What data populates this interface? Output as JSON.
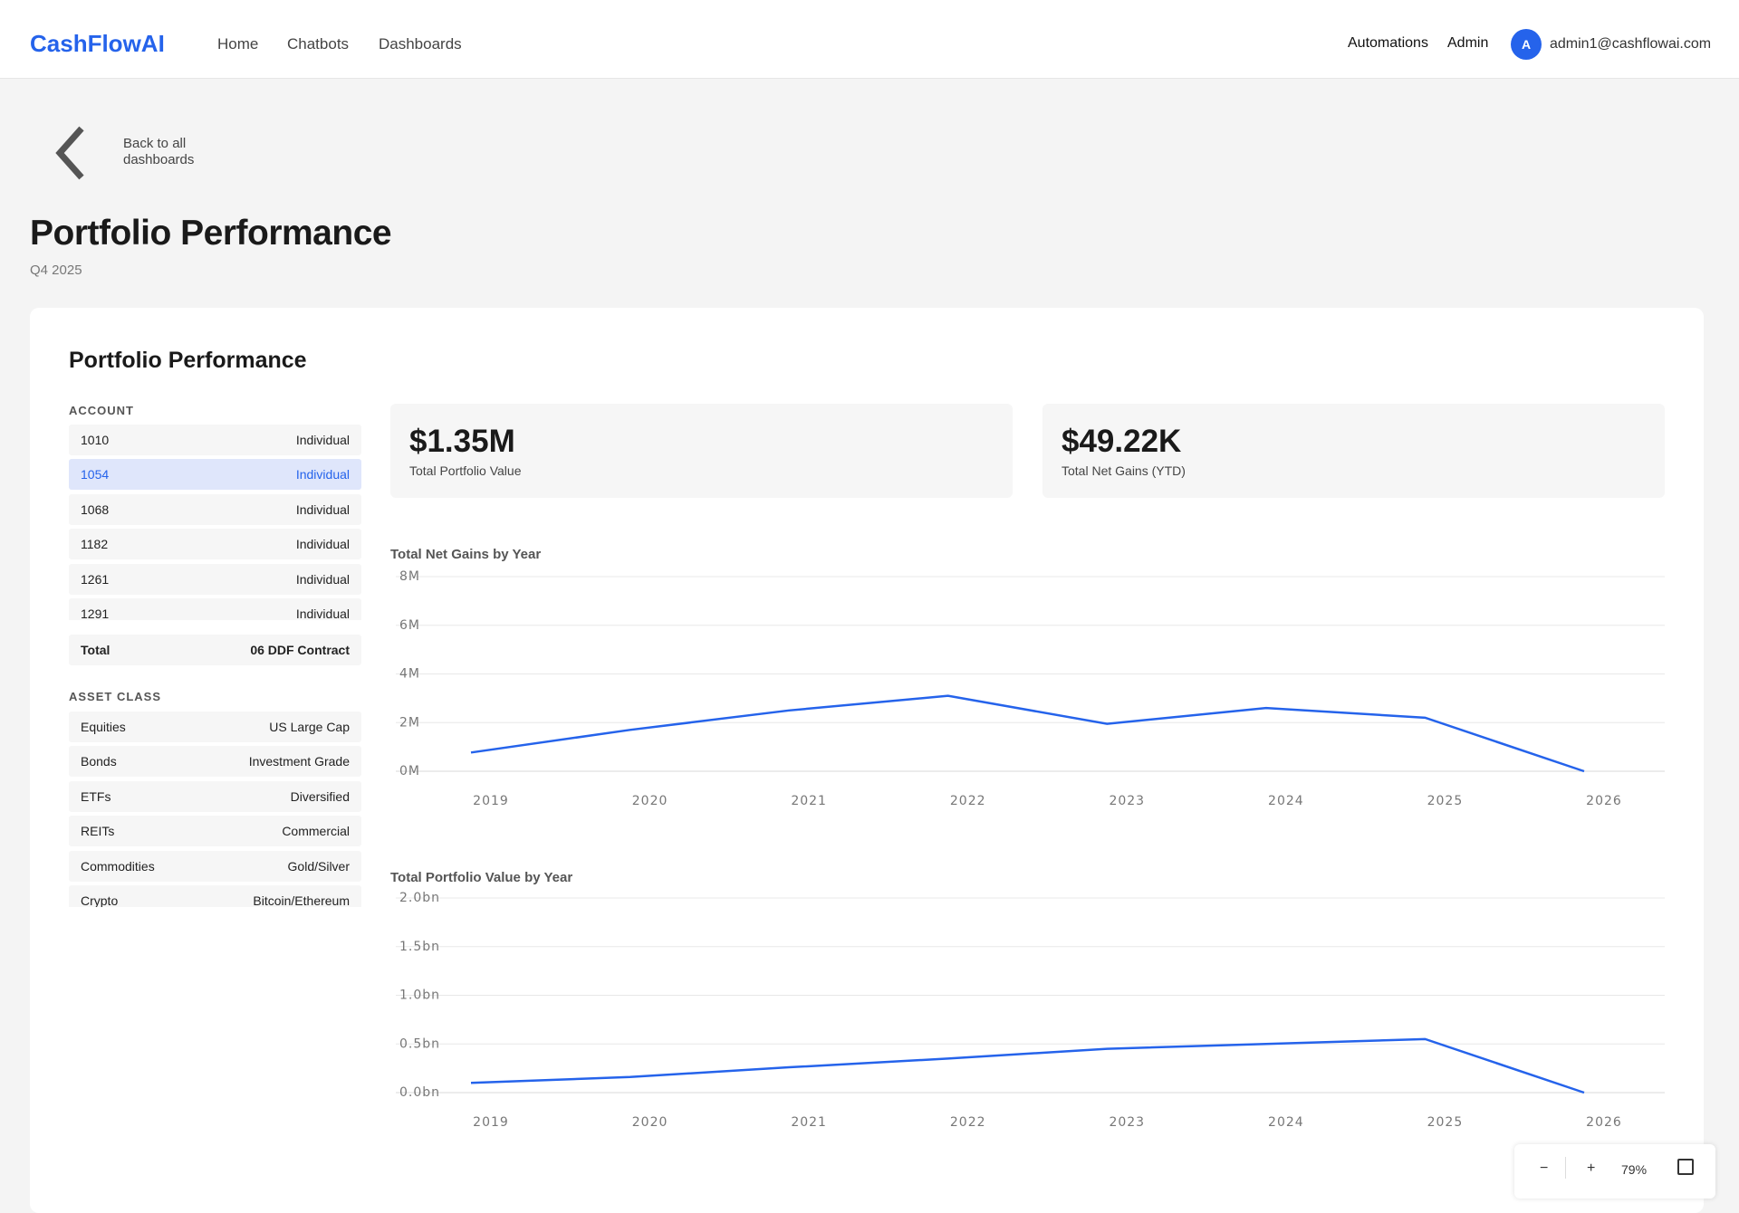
{
  "header": {
    "logo": "CashFlowAI",
    "nav": [
      "Home",
      "Chatbots",
      "Dashboards"
    ],
    "right_nav": [
      "Automations",
      "Admin"
    ],
    "avatar": "A",
    "email": "admin1@cashflowai.com"
  },
  "back_link": "Back to all dashboards",
  "page": {
    "title": "Portfolio Performance",
    "subtitle": "Q4 2025"
  },
  "card": {
    "title": "Portfolio Performance",
    "account": {
      "label": "ACCOUNT",
      "selected": 1,
      "rows": [
        [
          "1010",
          "Individual"
        ],
        [
          "1054",
          "Individual"
        ],
        [
          "1068",
          "Individual"
        ],
        [
          "1182",
          "Individual"
        ],
        [
          "1261",
          "Individual"
        ],
        [
          "1291",
          "Individual"
        ]
      ],
      "total": [
        "Total",
        "06 DDF Contract"
      ]
    },
    "asset_class": {
      "label": "ASSET CLASS",
      "rows": [
        [
          "Equities",
          "US Large Cap"
        ],
        [
          "Bonds",
          "Investment Grade"
        ],
        [
          "ETFs",
          "Diversified"
        ],
        [
          "REITs",
          "Commercial"
        ],
        [
          "Commodities",
          "Gold/Silver"
        ],
        [
          "Crypto",
          "Bitcoin/Ethereum"
        ]
      ]
    },
    "kpis": [
      {
        "value": "$1.35M",
        "label": "Total Portfolio Value"
      },
      {
        "value": "$49.22K",
        "label": "Total Net Gains (YTD)"
      }
    ]
  },
  "chart_data": [
    {
      "type": "line",
      "title": "Total Net Gains by Year",
      "color": "#2563eb",
      "grid": true,
      "categories": [
        "2019",
        "2020",
        "2021",
        "2022",
        "2023",
        "2024",
        "2025",
        "2026"
      ],
      "values": [
        0.77,
        1.7,
        2.5,
        3.1,
        1.95,
        2.6,
        2.2,
        0
      ],
      "ylim": [
        0,
        8
      ],
      "yticks": [
        {
          "value": 0,
          "label": "0M"
        },
        {
          "value": 2,
          "label": "2M"
        },
        {
          "value": 4,
          "label": "4M"
        },
        {
          "value": 6,
          "label": "6M"
        },
        {
          "value": 8,
          "label": "8M"
        }
      ]
    },
    {
      "type": "line",
      "title": "Total Portfolio Value by Year",
      "color": "#2563eb",
      "grid": true,
      "categories": [
        "2019",
        "2020",
        "2021",
        "2022",
        "2023",
        "2024",
        "2025",
        "2026"
      ],
      "values": [
        0.1,
        0.16,
        0.26,
        0.35,
        0.45,
        0.5,
        0.55,
        0
      ],
      "ylim": [
        0,
        2
      ],
      "yticks": [
        {
          "value": 0,
          "label": "0.0bn"
        },
        {
          "value": 0.5,
          "label": "0.5bn"
        },
        {
          "value": 1,
          "label": "1.0bn"
        },
        {
          "value": 1.5,
          "label": "1.5bn"
        },
        {
          "value": 2,
          "label": "2.0bn"
        }
      ]
    }
  ],
  "zoom": {
    "minus": "−",
    "plus": "+",
    "level": "79%"
  }
}
